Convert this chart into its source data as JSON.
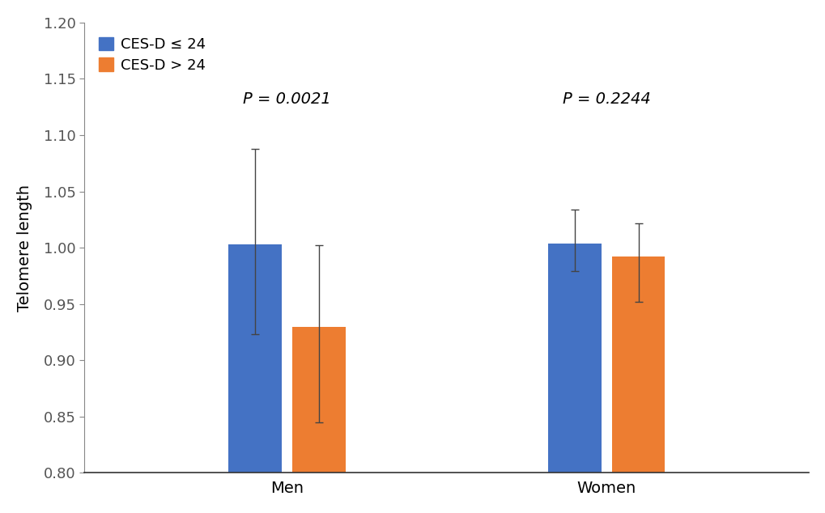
{
  "groups": [
    "Men",
    "Women"
  ],
  "categories": [
    "CES-D ≤ 24",
    "CES-D > 24"
  ],
  "bar_colors": [
    "#4472C4",
    "#ED7D31"
  ],
  "values": {
    "Men": [
      1.003,
      0.93
    ],
    "Women": [
      1.004,
      0.992
    ]
  },
  "errors_upper": {
    "Men": [
      0.085,
      0.072
    ],
    "Women": [
      0.03,
      0.03
    ]
  },
  "errors_lower": {
    "Men": [
      0.08,
      0.085
    ],
    "Women": [
      0.025,
      0.04
    ]
  },
  "pvalues": {
    "Men": "P = 0.0021",
    "Women": "P = 0.2244"
  },
  "ylabel": "Telomere length",
  "ylim": [
    0.8,
    1.2
  ],
  "yticks": [
    0.8,
    0.85,
    0.9,
    0.95,
    1.0,
    1.05,
    1.1,
    1.15,
    1.2
  ],
  "bar_width": 0.25,
  "bar_gap": 0.05,
  "group_centers": [
    1.0,
    2.5
  ],
  "background_color": "#ffffff",
  "pvalue_fontsize": 14,
  "ylabel_fontsize": 14,
  "tick_fontsize": 13,
  "legend_fontsize": 13
}
